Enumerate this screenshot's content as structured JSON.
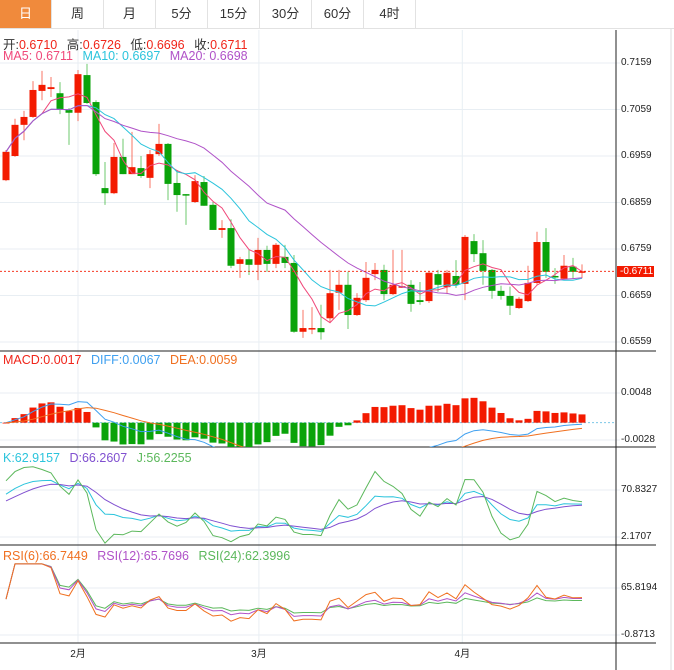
{
  "tabs": [
    "日",
    "周",
    "月",
    "5分",
    "15分",
    "30分",
    "60分",
    "4时"
  ],
  "active_tab": 0,
  "ohlc_header": {
    "open_label": "开:",
    "open": "0.6710",
    "high_label": "高:",
    "high": "0.6726",
    "low_label": "低:",
    "low": "0.6696",
    "close_label": "收:",
    "close": "0.6711"
  },
  "ma_header": {
    "ma5": "MA5: 0.6711",
    "ma10": "MA10: 0.6697",
    "ma20": "MA20: 0.6698"
  },
  "macd_header": {
    "macd": "MACD:0.0017",
    "diff": "DIFF:0.0067",
    "dea": "DEA:0.0059"
  },
  "kdj_header": {
    "k": "K:62.9157",
    "d": "D:66.2607",
    "j": "J:56.2255"
  },
  "rsi_header": {
    "rsi6": "RSI(6):66.7449",
    "rsi12": "RSI(12):65.7696",
    "rsi24": "RSI(24):62.3996"
  },
  "colors": {
    "up": "#f31a00",
    "down": "#0aa30a",
    "ma5": "#f0487a",
    "ma10": "#2bc4dc",
    "ma20": "#b052c8",
    "diff": "#3fa0f0",
    "dea": "#f07020",
    "k": "#2bc4dc",
    "d": "#8050d0",
    "j": "#5cb85c",
    "rsi6": "#f07020",
    "rsi12": "#b052c8",
    "rsi24": "#5cb85c"
  },
  "chart_data": {
    "type": "candlestick",
    "price_ticks": [
      0.7159,
      0.7059,
      0.6959,
      0.6859,
      0.6759,
      0.6659,
      0.6559
    ],
    "current_price": "0.6711",
    "macd_ticks": [
      0.0048,
      -0.0028
    ],
    "kdj_ticks": [
      70.8327,
      2.1707
    ],
    "rsi_ticks": [
      65.8194,
      -0.8713
    ],
    "time_labels": [
      {
        "label": "2月",
        "index": 8
      },
      {
        "label": "3月",
        "index": 28.1
      },
      {
        "label": "4月",
        "index": 50.7
      }
    ],
    "ohlc": [
      [
        0.6907,
        0.6972,
        0.6905,
        0.6968
      ],
      [
        0.6959,
        0.7039,
        0.6957,
        0.7026
      ],
      [
        0.7026,
        0.7056,
        0.6993,
        0.7043
      ],
      [
        0.7043,
        0.712,
        0.7041,
        0.7101
      ],
      [
        0.7099,
        0.7142,
        0.7079,
        0.7112
      ],
      [
        0.7103,
        0.7129,
        0.7086,
        0.7107
      ],
      [
        0.7094,
        0.7118,
        0.7049,
        0.7058
      ],
      [
        0.7058,
        0.7062,
        0.6983,
        0.7052
      ],
      [
        0.7052,
        0.7144,
        0.7034,
        0.7135
      ],
      [
        0.7133,
        0.7157,
        0.7071,
        0.7073
      ],
      [
        0.7075,
        0.7079,
        0.6916,
        0.692
      ],
      [
        0.689,
        0.6946,
        0.6854,
        0.6879
      ],
      [
        0.6879,
        0.6987,
        0.6877,
        0.6957
      ],
      [
        0.6957,
        0.6996,
        0.692,
        0.692
      ],
      [
        0.692,
        0.7011,
        0.692,
        0.6935
      ],
      [
        0.6933,
        0.6959,
        0.6912,
        0.6916
      ],
      [
        0.6912,
        0.6972,
        0.689,
        0.6963
      ],
      [
        0.6963,
        0.7028,
        0.6959,
        0.6985
      ],
      [
        0.6985,
        0.6987,
        0.6864,
        0.6899
      ],
      [
        0.6901,
        0.6929,
        0.6839,
        0.6875
      ],
      [
        0.6877,
        0.6877,
        0.6811,
        0.6875
      ],
      [
        0.686,
        0.6918,
        0.6858,
        0.6905
      ],
      [
        0.6903,
        0.6916,
        0.6852,
        0.6852
      ],
      [
        0.6854,
        0.686,
        0.68,
        0.68
      ],
      [
        0.68,
        0.6821,
        0.6783,
        0.6804
      ],
      [
        0.6804,
        0.6823,
        0.6718,
        0.6723
      ],
      [
        0.6727,
        0.6742,
        0.6697,
        0.6737
      ],
      [
        0.6737,
        0.6757,
        0.6703,
        0.6725
      ],
      [
        0.6725,
        0.6783,
        0.6692,
        0.6757
      ],
      [
        0.6757,
        0.6766,
        0.671,
        0.6727
      ],
      [
        0.6727,
        0.6772,
        0.6718,
        0.6768
      ],
      [
        0.6742,
        0.6768,
        0.6718,
        0.6729
      ],
      [
        0.6729,
        0.6746,
        0.6579,
        0.6581
      ],
      [
        0.6581,
        0.6628,
        0.6568,
        0.6589
      ],
      [
        0.6587,
        0.6634,
        0.6576,
        0.6589
      ],
      [
        0.6589,
        0.6639,
        0.6564,
        0.658
      ],
      [
        0.661,
        0.6714,
        0.6602,
        0.6664
      ],
      [
        0.6665,
        0.6714,
        0.6628,
        0.6682
      ],
      [
        0.6682,
        0.671,
        0.6587,
        0.6617
      ],
      [
        0.6617,
        0.6664,
        0.6615,
        0.6654
      ],
      [
        0.6649,
        0.6731,
        0.6645,
        0.6697
      ],
      [
        0.6705,
        0.6729,
        0.6692,
        0.6714
      ],
      [
        0.6714,
        0.6725,
        0.6649,
        0.6662
      ],
      [
        0.6662,
        0.6757,
        0.666,
        0.6682
      ],
      [
        0.6677,
        0.6757,
        0.6675,
        0.6679
      ],
      [
        0.6682,
        0.6692,
        0.6624,
        0.6641
      ],
      [
        0.6649,
        0.6688,
        0.6639,
        0.6645
      ],
      [
        0.6647,
        0.6712,
        0.6643,
        0.6708
      ],
      [
        0.6705,
        0.6714,
        0.6667,
        0.6682
      ],
      [
        0.6677,
        0.6714,
        0.6662,
        0.6708
      ],
      [
        0.6701,
        0.6735,
        0.6675,
        0.6682
      ],
      [
        0.6684,
        0.6789,
        0.6649,
        0.6785
      ],
      [
        0.6776,
        0.6791,
        0.6731,
        0.6748
      ],
      [
        0.675,
        0.6778,
        0.6682,
        0.6712
      ],
      [
        0.6714,
        0.6716,
        0.6652,
        0.6669
      ],
      [
        0.6669,
        0.668,
        0.665,
        0.6658
      ],
      [
        0.6658,
        0.6678,
        0.6617,
        0.6637
      ],
      [
        0.6632,
        0.6656,
        0.663,
        0.6652
      ],
      [
        0.6647,
        0.6723,
        0.6645,
        0.6686
      ],
      [
        0.6686,
        0.6796,
        0.6682,
        0.6774
      ],
      [
        0.6774,
        0.6804,
        0.6697,
        0.671
      ],
      [
        0.6701,
        0.6718,
        0.6684,
        0.6699
      ],
      [
        0.6695,
        0.6746,
        0.6693,
        0.6723
      ],
      [
        0.6721,
        0.674,
        0.6695,
        0.671
      ],
      [
        0.671,
        0.6726,
        0.6696,
        0.6711
      ]
    ]
  }
}
